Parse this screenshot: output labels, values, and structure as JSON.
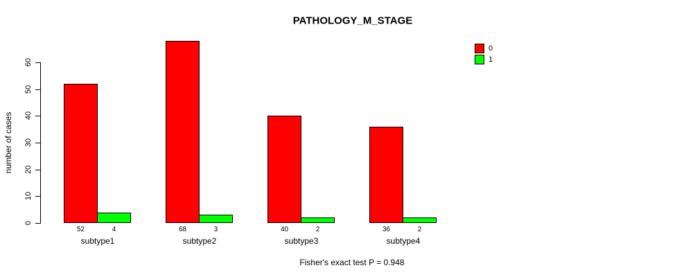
{
  "chart_data": {
    "type": "bar",
    "title": "PATHOLOGY_M_STAGE",
    "ylabel": "number of cases",
    "xlabel": "",
    "categories": [
      "subtype1",
      "subtype2",
      "subtype3",
      "subtype4"
    ],
    "series": [
      {
        "name": "0",
        "color": "#ff0000",
        "values": [
          52,
          68,
          40,
          36
        ]
      },
      {
        "name": "1",
        "color": "#00ff00",
        "values": [
          4,
          3,
          2,
          2
        ]
      }
    ],
    "yticks": [
      0,
      10,
      20,
      30,
      40,
      50,
      60
    ],
    "ylim": [
      0,
      60
    ],
    "grid": false,
    "bar_value_labels": true,
    "legend_position": "top-right",
    "annotation": "Fisher's exact test P = 0.948"
  }
}
